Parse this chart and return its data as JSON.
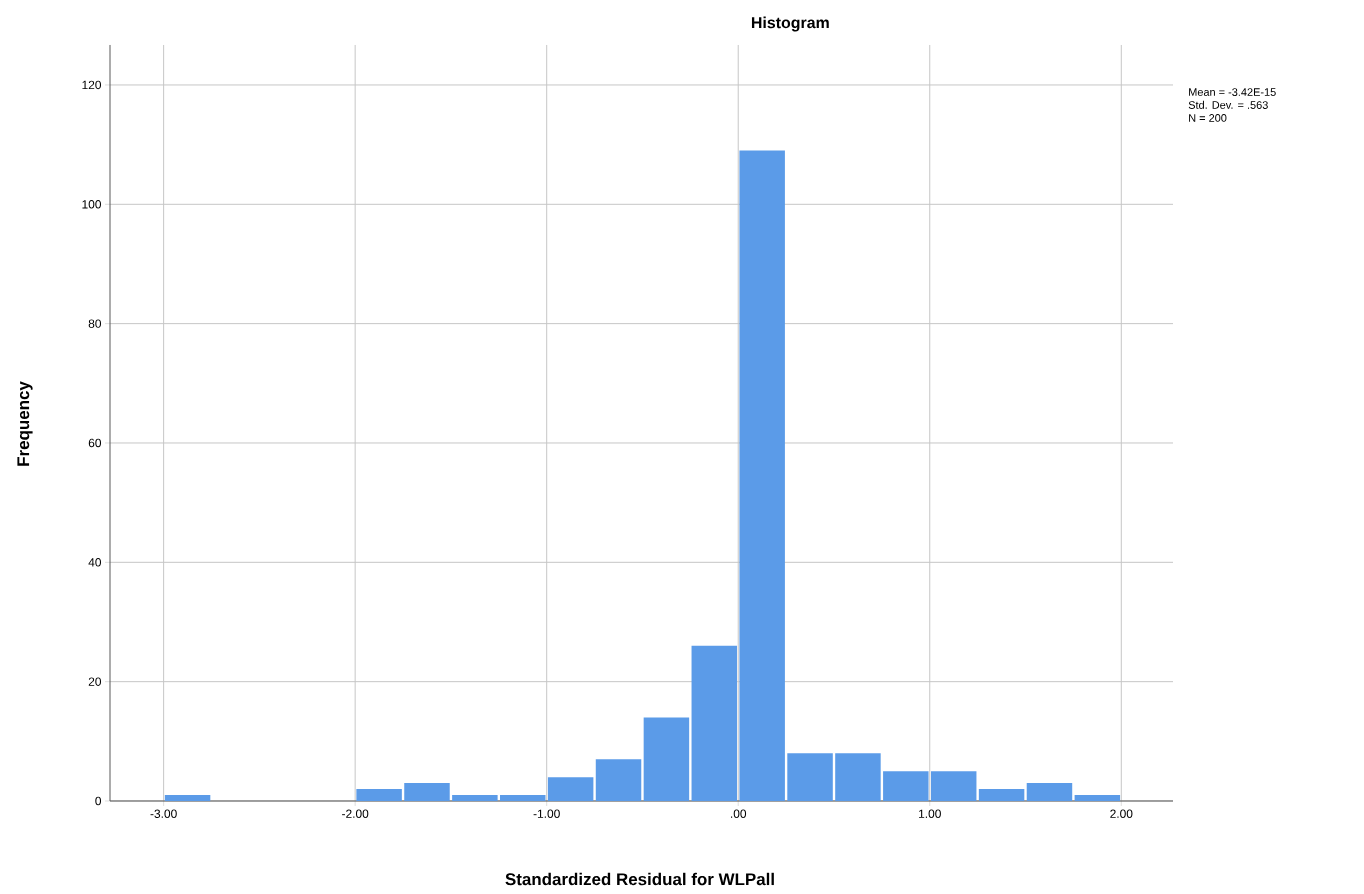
{
  "chart_data": {
    "type": "histogram",
    "title": "Histogram",
    "xlabel": "Standardized Residual for WLPall",
    "ylabel": "Frequency",
    "annotations": [
      "Mean = -3.42E-15",
      "Std. Dev. = .563",
      "N = 200"
    ],
    "bins": [
      -3.0,
      -2.75,
      -2.5,
      -2.25,
      -2.0,
      -1.75,
      -1.5,
      -1.25,
      -1.0,
      -0.75,
      -0.5,
      -0.25,
      0.0,
      0.25,
      0.5,
      0.75,
      1.0,
      1.25,
      1.5,
      1.75,
      2.0
    ],
    "values": [
      1,
      0,
      0,
      0,
      2,
      3,
      1,
      1,
      4,
      7,
      14,
      26,
      109,
      8,
      8,
      5,
      5,
      2,
      3,
      1
    ],
    "color": "#5b9be8",
    "xlim": [
      -3.28,
      2.27
    ],
    "ylim": [
      0,
      126.7
    ],
    "xticks": [
      {
        "value": -3,
        "label": "-3.00"
      },
      {
        "value": -2,
        "label": "-2.00"
      },
      {
        "value": -1,
        "label": "-1.00"
      },
      {
        "value": 0,
        "label": ".00"
      },
      {
        "value": 1,
        "label": "1.00"
      },
      {
        "value": 2,
        "label": "2.00"
      }
    ],
    "yticks": [
      0,
      20,
      40,
      60,
      80,
      100,
      120
    ],
    "grid": true
  }
}
